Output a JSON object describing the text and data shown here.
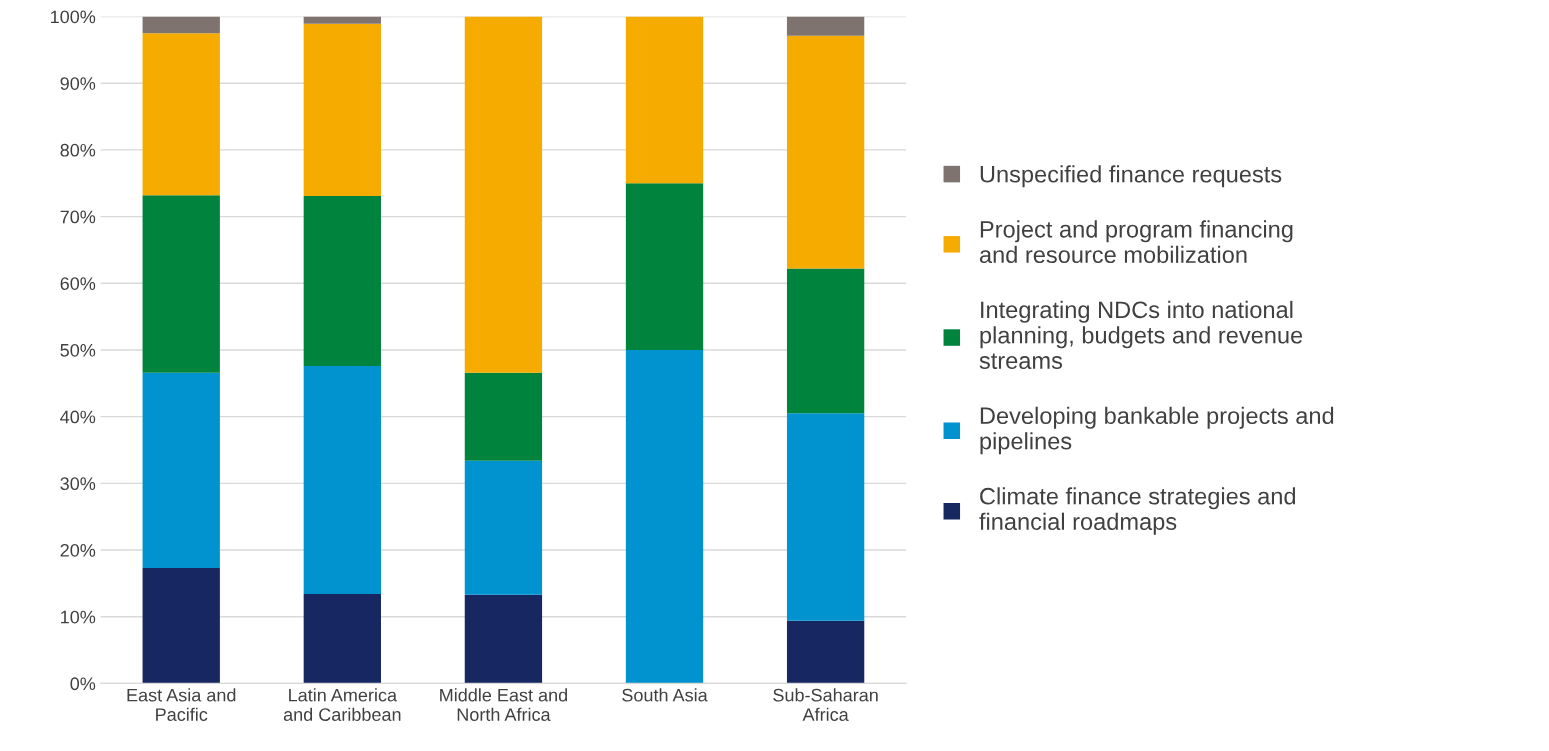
{
  "chart_data": {
    "type": "bar",
    "stacked": true,
    "categories": [
      "East Asia and\nPacific",
      "Latin America\nand Caribbean",
      "Middle East and\nNorth Africa",
      "South Asia",
      "Sub-Saharan\nAfrica"
    ],
    "series": [
      {
        "name": "Climate finance strategies and\nfinancial roadmaps",
        "color": "#172762",
        "values": [
          17.3,
          13.4,
          13.3,
          0,
          9.4
        ]
      },
      {
        "name": "Developing bankable projects and\npipelines",
        "color": "#0093d0",
        "values": [
          29.3,
          34.2,
          20.1,
          50,
          31.1
        ]
      },
      {
        "name": "Integrating NDCs into national\nplanning, budgets and revenue\nstreams",
        "color": "#00843d",
        "values": [
          26.6,
          25.5,
          13.2,
          25,
          21.7
        ]
      },
      {
        "name": "Project and program financing\nand resource mobilization",
        "color": "#f5ab00",
        "values": [
          24.3,
          25.8,
          53.4,
          25,
          34.9
        ]
      },
      {
        "name": "Unspecified finance requests",
        "color": "#7f7370",
        "values": [
          2.5,
          1.1,
          0,
          0,
          2.9
        ]
      }
    ],
    "ylim": [
      0,
      100
    ],
    "yticks": [
      {
        "value": 0,
        "label": "0%"
      },
      {
        "value": 10,
        "label": "10%"
      },
      {
        "value": 20,
        "label": "20%"
      },
      {
        "value": 30,
        "label": "30%"
      },
      {
        "value": 40,
        "label": "40%"
      },
      {
        "value": 50,
        "label": "50%"
      },
      {
        "value": 60,
        "label": "60%"
      },
      {
        "value": 70,
        "label": "70%"
      },
      {
        "value": 80,
        "label": "80%"
      },
      {
        "value": 90,
        "label": "90%"
      },
      {
        "value": 100,
        "label": "100%"
      }
    ],
    "grid": "y",
    "legend": "right"
  }
}
